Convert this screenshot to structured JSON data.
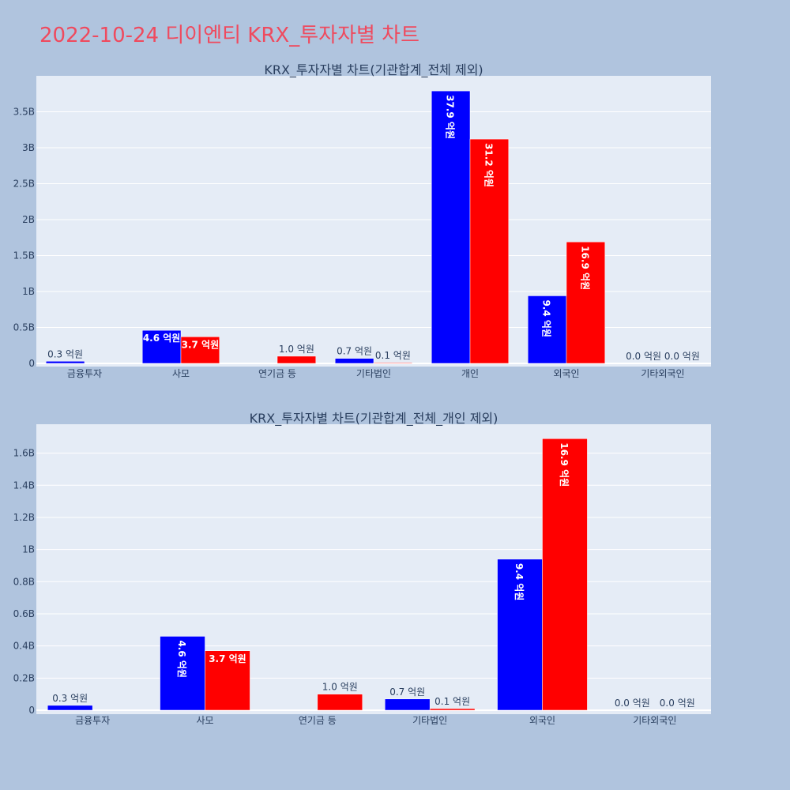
{
  "page_title": "2022-10-24 디이엔티 KRX_투자자별 차트",
  "colors": {
    "series_1": "#0000ff",
    "series_2": "#ff0000",
    "title": "#ef4a5e"
  },
  "chart_data": [
    {
      "type": "bar",
      "title": "KRX_투자자별 차트(기관합계_전체 제외)",
      "categories": [
        "금융투자",
        "사모",
        "연기금 등",
        "기타법인",
        "개인",
        "외국인",
        "기타외국인"
      ],
      "series": [
        {
          "values": [
            30000000,
            460000000,
            0,
            70000000,
            3790000000,
            940000000,
            0
          ],
          "labels": [
            "0.3 억원",
            "4.6 억원",
            "",
            "0.7 억원",
            "37.9 억원",
            "9.4 억원",
            "0.0 억원"
          ]
        },
        {
          "values": [
            0,
            370000000,
            100000000,
            10000000,
            3120000000,
            1690000000,
            0
          ],
          "labels": [
            "",
            "3.7 억원",
            "1.0 억원",
            "0.1 억원",
            "31.2 억원",
            "16.9 억원",
            "0.0 억원"
          ]
        }
      ],
      "ylim": [
        0,
        4000000000
      ],
      "yticks": [
        0,
        500000000,
        1000000000,
        1500000000,
        2000000000,
        2500000000,
        3000000000,
        3500000000
      ],
      "ytick_labels": [
        "0",
        "0.5B",
        "1B",
        "1.5B",
        "2B",
        "2.5B",
        "3B",
        "3.5B"
      ],
      "grid": true
    },
    {
      "type": "bar",
      "title": "KRX_투자자별 차트(기관합계_전체_개인 제외)",
      "categories": [
        "금융투자",
        "사모",
        "연기금 등",
        "기타법인",
        "외국인",
        "기타외국인"
      ],
      "series": [
        {
          "values": [
            30000000,
            460000000,
            0,
            70000000,
            940000000,
            0
          ],
          "labels": [
            "0.3 억원",
            "4.6 억원",
            "",
            "0.7 억원",
            "9.4 억원",
            "0.0 억원"
          ]
        },
        {
          "values": [
            0,
            370000000,
            100000000,
            10000000,
            1690000000,
            0
          ],
          "labels": [
            "",
            "3.7 억원",
            "1.0 억원",
            "0.1 억원",
            "16.9 억원",
            "0.0 억원"
          ]
        }
      ],
      "ylim": [
        0,
        1780000000
      ],
      "yticks": [
        0,
        200000000,
        400000000,
        600000000,
        800000000,
        1000000000,
        1200000000,
        1400000000,
        1600000000
      ],
      "ytick_labels": [
        "0",
        "0.2B",
        "0.4B",
        "0.6B",
        "0.8B",
        "1B",
        "1.2B",
        "1.4B",
        "1.6B"
      ],
      "grid": true
    }
  ]
}
